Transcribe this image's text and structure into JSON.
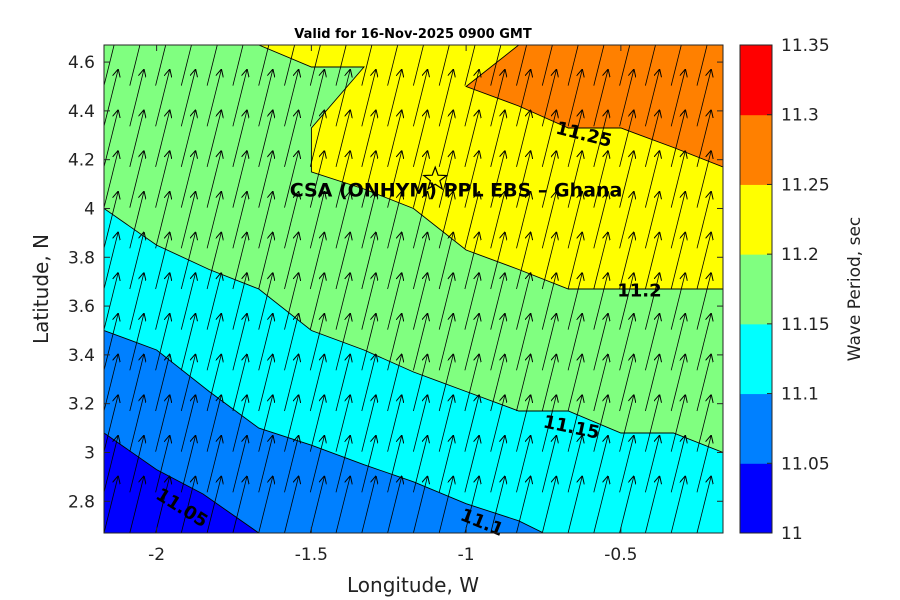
{
  "chart_data": {
    "type": "filled-contour",
    "title": "Valid for 16-Nov-2025 0900 GMT",
    "xlabel": "Longitude, W",
    "ylabel": "Latitude, N",
    "xlim": [
      -2.17,
      -0.17
    ],
    "ylim": [
      2.67,
      4.67
    ],
    "xticks": [
      -2,
      -1.5,
      -1,
      -0.5
    ],
    "xtick_labels": [
      "-2",
      "-1.5",
      "-1",
      "-0.5"
    ],
    "yticks": [
      2.8,
      3,
      3.2,
      3.4,
      3.6,
      3.8,
      4,
      4.2,
      4.4,
      4.6
    ],
    "ytick_labels": [
      "2.8",
      "3",
      "3.2",
      "3.4",
      "3.6",
      "3.8",
      "4",
      "4.2",
      "4.4",
      "4.6"
    ],
    "colorbar": {
      "label": "Wave Period, sec",
      "levels": [
        11,
        11.05,
        11.1,
        11.15,
        11.2,
        11.25,
        11.3,
        11.35
      ],
      "tick_labels": [
        "11",
        "11.05",
        "11.1",
        "11.15",
        "11.2",
        "11.25",
        "11.3",
        "11.35"
      ],
      "colors": [
        "#0000ff",
        "#0080ff",
        "#00ffff",
        "#80ff80",
        "#ffff00",
        "#ff8000",
        "#ff0000"
      ]
    },
    "contours": [
      {
        "level": 11.05,
        "label": "11.05",
        "points": [
          [
            -2.17,
            3.08
          ],
          [
            -2.0,
            2.93
          ],
          [
            -1.85,
            2.83
          ],
          [
            -1.67,
            2.67
          ]
        ],
        "label_at": [
          -1.92,
          2.77
        ],
        "label_angle": 32
      },
      {
        "level": 11.1,
        "label": "11.1",
        "points": [
          [
            -2.17,
            3.5
          ],
          [
            -2.0,
            3.42
          ],
          [
            -1.83,
            3.25
          ],
          [
            -1.67,
            3.1
          ],
          [
            -1.5,
            3.03
          ],
          [
            -1.33,
            2.95
          ],
          [
            -1.17,
            2.88
          ],
          [
            -1.0,
            2.79
          ],
          [
            -0.83,
            2.72
          ],
          [
            -0.75,
            2.67
          ]
        ],
        "label_at": [
          -0.95,
          2.71
        ],
        "label_angle": 22
      },
      {
        "level": 11.15,
        "label": "11.15",
        "points": [
          [
            -2.17,
            4.0
          ],
          [
            -2.0,
            3.85
          ],
          [
            -1.83,
            3.75
          ],
          [
            -1.67,
            3.67
          ],
          [
            -1.5,
            3.5
          ],
          [
            -1.33,
            3.42
          ],
          [
            -1.17,
            3.33
          ],
          [
            -1.0,
            3.25
          ],
          [
            -0.83,
            3.17
          ],
          [
            -0.67,
            3.17
          ],
          [
            -0.5,
            3.08
          ],
          [
            -0.33,
            3.08
          ],
          [
            -0.17,
            3.0
          ]
        ],
        "label_at": [
          -0.66,
          3.1
        ],
        "label_angle": 12
      },
      {
        "level": 11.2,
        "label": "11.2",
        "points": [
          [
            -1.67,
            4.67
          ],
          [
            -1.5,
            4.58
          ],
          [
            -1.33,
            4.58
          ],
          [
            -1.5,
            4.33
          ],
          [
            -1.5,
            4.15
          ],
          [
            -1.33,
            4.08
          ],
          [
            -1.17,
            4.0
          ],
          [
            -1.0,
            3.83
          ],
          [
            -0.83,
            3.75
          ],
          [
            -0.67,
            3.67
          ],
          [
            -0.5,
            3.67
          ],
          [
            -0.33,
            3.67
          ],
          [
            -0.17,
            3.67
          ]
        ],
        "label_at": [
          -0.44,
          3.66
        ],
        "label_angle": 0
      },
      {
        "level": 11.25,
        "label": "11.25",
        "points": [
          [
            -0.83,
            4.67
          ],
          [
            -1.0,
            4.5
          ],
          [
            -0.83,
            4.42
          ],
          [
            -0.67,
            4.33
          ],
          [
            -0.5,
            4.33
          ],
          [
            -0.33,
            4.25
          ],
          [
            -0.17,
            4.17
          ]
        ],
        "label_at": [
          -0.62,
          4.3
        ],
        "label_angle": 14
      }
    ],
    "regions": [
      {
        "range": [
          11.0,
          11.05
        ],
        "color": "#0000ff",
        "points": [
          [
            -2.17,
            2.67
          ],
          [
            -2.17,
            3.08
          ],
          [
            -2.0,
            2.93
          ],
          [
            -1.85,
            2.83
          ],
          [
            -1.67,
            2.67
          ]
        ]
      },
      {
        "range": [
          11.05,
          11.1
        ],
        "color": "#0080ff",
        "points": [
          [
            -2.17,
            3.08
          ],
          [
            -2.0,
            2.93
          ],
          [
            -1.85,
            2.83
          ],
          [
            -1.67,
            2.67
          ],
          [
            -0.75,
            2.67
          ],
          [
            -0.83,
            2.72
          ],
          [
            -1.0,
            2.79
          ],
          [
            -1.17,
            2.88
          ],
          [
            -1.33,
            2.95
          ],
          [
            -1.5,
            3.03
          ],
          [
            -1.67,
            3.1
          ],
          [
            -1.83,
            3.25
          ],
          [
            -2.0,
            3.42
          ],
          [
            -2.17,
            3.5
          ]
        ]
      },
      {
        "range": [
          11.1,
          11.15
        ],
        "color": "#00ffff",
        "points": [
          [
            -2.17,
            3.5
          ],
          [
            -2.0,
            3.42
          ],
          [
            -1.83,
            3.25
          ],
          [
            -1.67,
            3.1
          ],
          [
            -1.5,
            3.03
          ],
          [
            -1.33,
            2.95
          ],
          [
            -1.17,
            2.88
          ],
          [
            -1.0,
            2.79
          ],
          [
            -0.83,
            2.72
          ],
          [
            -0.75,
            2.67
          ],
          [
            -0.17,
            2.67
          ],
          [
            -0.17,
            3.0
          ],
          [
            -0.33,
            3.08
          ],
          [
            -0.5,
            3.08
          ],
          [
            -0.67,
            3.17
          ],
          [
            -0.83,
            3.17
          ],
          [
            -1.0,
            3.25
          ],
          [
            -1.17,
            3.33
          ],
          [
            -1.33,
            3.42
          ],
          [
            -1.5,
            3.5
          ],
          [
            -1.67,
            3.67
          ],
          [
            -1.83,
            3.75
          ],
          [
            -2.0,
            3.85
          ],
          [
            -2.17,
            4.0
          ]
        ]
      },
      {
        "range": [
          11.15,
          11.2
        ],
        "color": "#80ff80",
        "points": [
          [
            -2.17,
            4.67
          ],
          [
            -1.67,
            4.67
          ],
          [
            -1.5,
            4.58
          ],
          [
            -1.33,
            4.58
          ],
          [
            -1.5,
            4.33
          ],
          [
            -1.5,
            4.15
          ],
          [
            -1.33,
            4.08
          ],
          [
            -1.17,
            4.0
          ],
          [
            -1.0,
            3.83
          ],
          [
            -0.83,
            3.75
          ],
          [
            -0.67,
            3.67
          ],
          [
            -0.5,
            3.67
          ],
          [
            -0.33,
            3.67
          ],
          [
            -0.17,
            3.67
          ],
          [
            -0.17,
            3.0
          ],
          [
            -0.33,
            3.08
          ],
          [
            -0.5,
            3.08
          ],
          [
            -0.67,
            3.17
          ],
          [
            -0.83,
            3.17
          ],
          [
            -1.0,
            3.25
          ],
          [
            -1.17,
            3.33
          ],
          [
            -1.33,
            3.42
          ],
          [
            -1.5,
            3.5
          ],
          [
            -1.67,
            3.67
          ],
          [
            -1.83,
            3.75
          ],
          [
            -2.0,
            3.85
          ],
          [
            -2.17,
            4.0
          ]
        ]
      },
      {
        "range": [
          11.2,
          11.25
        ],
        "color": "#ffff00",
        "points": [
          [
            -1.67,
            4.67
          ],
          [
            -0.83,
            4.67
          ],
          [
            -1.0,
            4.5
          ],
          [
            -0.83,
            4.42
          ],
          [
            -0.67,
            4.33
          ],
          [
            -0.5,
            4.33
          ],
          [
            -0.33,
            4.25
          ],
          [
            -0.17,
            4.17
          ],
          [
            -0.17,
            3.67
          ],
          [
            -0.33,
            3.67
          ],
          [
            -0.5,
            3.67
          ],
          [
            -0.67,
            3.67
          ],
          [
            -0.83,
            3.75
          ],
          [
            -1.0,
            3.83
          ],
          [
            -1.17,
            4.0
          ],
          [
            -1.33,
            4.08
          ],
          [
            -1.5,
            4.15
          ],
          [
            -1.5,
            4.33
          ],
          [
            -1.33,
            4.58
          ],
          [
            -1.5,
            4.58
          ]
        ]
      },
      {
        "range": [
          11.25,
          11.3
        ],
        "color": "#ff8000",
        "points": [
          [
            -0.83,
            4.67
          ],
          [
            -0.17,
            4.67
          ],
          [
            -0.17,
            4.17
          ],
          [
            -0.33,
            4.25
          ],
          [
            -0.5,
            4.33
          ],
          [
            -0.67,
            4.33
          ],
          [
            -0.83,
            4.42
          ],
          [
            -1.0,
            4.5
          ]
        ]
      }
    ],
    "arrows": {
      "description": "wave direction vectors on a regular grid, pointing north-northeast",
      "x_start": -2.17,
      "x_step": 0.0833,
      "nx": 24,
      "y_start": 2.67,
      "y_step": 0.1667,
      "ny": 12,
      "direction_deg_from_north": 14
    },
    "annotations": [
      {
        "text": "CSA (ONHYM) PPL EBS  – Ghana",
        "at": [
          -1.57,
          4.05
        ]
      },
      {
        "marker": "star",
        "at": [
          -1.1,
          4.12
        ]
      }
    ]
  }
}
